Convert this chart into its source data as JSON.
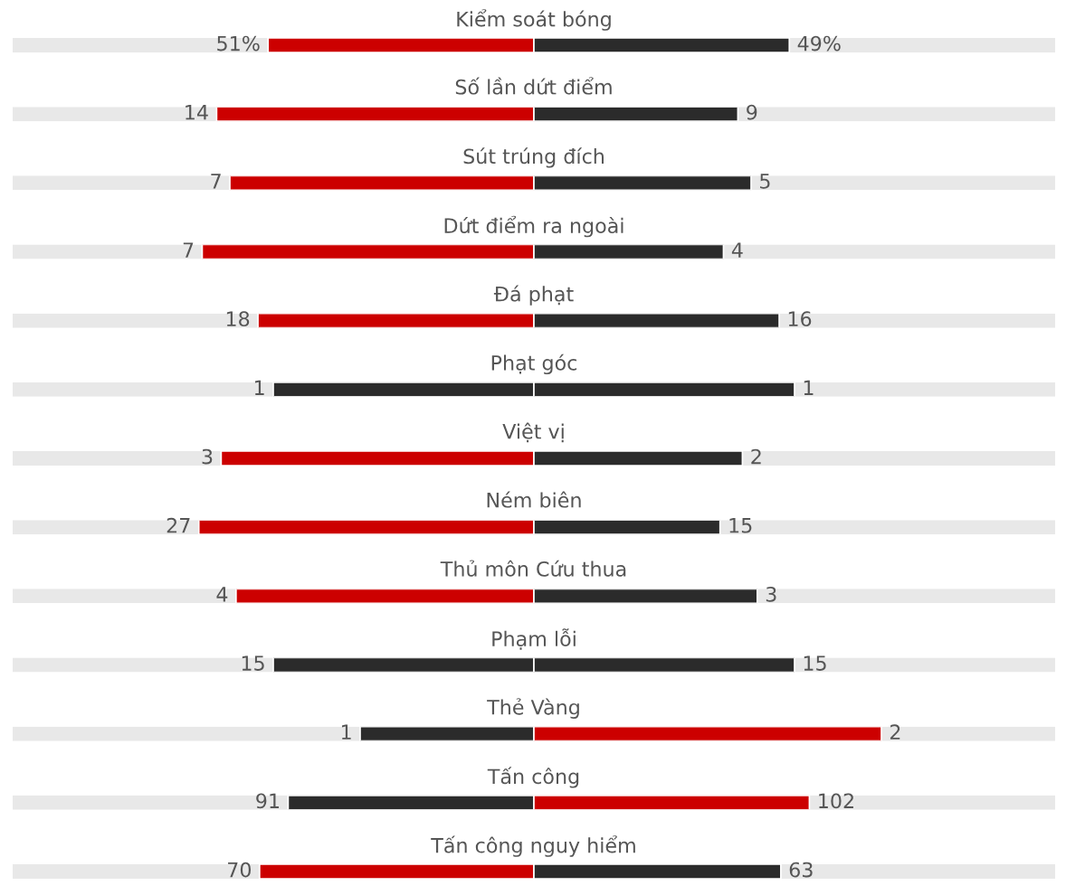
{
  "chart_data": [
    {
      "type": "bar",
      "orientation": "horizontal",
      "stacked": true,
      "tick_labels": "y",
      "categories": [
        "Kiểm soát bóng"
      ],
      "series": [
        {
          "values": [
            51
          ],
          "colors": [
            "#cc0000"
          ],
          "value_labels": [
            "51%"
          ]
        },
        {
          "values": [
            49
          ],
          "colors": [
            "#2b2b2b"
          ],
          "value_labels": [
            "49%"
          ]
        }
      ]
    },
    {
      "type": "bar",
      "orientation": "horizontal",
      "stacked": true,
      "tick_labels": "y",
      "categories": [
        "Số lần dứt điểm"
      ],
      "series": [
        {
          "values": [
            14
          ],
          "colors": [
            "#cc0000"
          ],
          "value_labels": [
            "14"
          ]
        },
        {
          "values": [
            9
          ],
          "colors": [
            "#2b2b2b"
          ],
          "value_labels": [
            "9"
          ]
        }
      ]
    },
    {
      "type": "bar",
      "orientation": "horizontal",
      "stacked": true,
      "tick_labels": "y",
      "categories": [
        "Sút trúng đích"
      ],
      "series": [
        {
          "values": [
            7
          ],
          "colors": [
            "#cc0000"
          ],
          "value_labels": [
            "7"
          ]
        },
        {
          "values": [
            5
          ],
          "colors": [
            "#2b2b2b"
          ],
          "value_labels": [
            "5"
          ]
        }
      ]
    },
    {
      "type": "bar",
      "orientation": "horizontal",
      "stacked": true,
      "tick_labels": "y",
      "categories": [
        "Dứt điểm ra ngoài"
      ],
      "series": [
        {
          "values": [
            7
          ],
          "colors": [
            "#cc0000"
          ],
          "value_labels": [
            "7"
          ]
        },
        {
          "values": [
            4
          ],
          "colors": [
            "#2b2b2b"
          ],
          "value_labels": [
            "4"
          ]
        }
      ]
    },
    {
      "type": "bar",
      "orientation": "horizontal",
      "stacked": true,
      "tick_labels": "y",
      "categories": [
        "Đá phạt"
      ],
      "series": [
        {
          "values": [
            18
          ],
          "colors": [
            "#cc0000"
          ],
          "value_labels": [
            "18"
          ]
        },
        {
          "values": [
            16
          ],
          "colors": [
            "#2b2b2b"
          ],
          "value_labels": [
            "16"
          ]
        }
      ]
    },
    {
      "type": "bar",
      "orientation": "horizontal",
      "stacked": true,
      "tick_labels": "y",
      "categories": [
        "Phạt góc"
      ],
      "series": [
        {
          "values": [
            1
          ],
          "colors": [
            "#2b2b2b"
          ],
          "value_labels": [
            "1"
          ]
        },
        {
          "values": [
            1
          ],
          "colors": [
            "#2b2b2b"
          ],
          "value_labels": [
            "1"
          ]
        }
      ]
    },
    {
      "type": "bar",
      "orientation": "horizontal",
      "stacked": true,
      "tick_labels": "y",
      "categories": [
        "Việt vị"
      ],
      "series": [
        {
          "values": [
            3
          ],
          "colors": [
            "#cc0000"
          ],
          "value_labels": [
            "3"
          ]
        },
        {
          "values": [
            2
          ],
          "colors": [
            "#2b2b2b"
          ],
          "value_labels": [
            "2"
          ]
        }
      ]
    },
    {
      "type": "bar",
      "orientation": "horizontal",
      "stacked": true,
      "tick_labels": "y",
      "categories": [
        "Ném biên"
      ],
      "series": [
        {
          "values": [
            27
          ],
          "colors": [
            "#cc0000"
          ],
          "value_labels": [
            "27"
          ]
        },
        {
          "values": [
            15
          ],
          "colors": [
            "#2b2b2b"
          ],
          "value_labels": [
            "15"
          ]
        }
      ]
    },
    {
      "type": "bar",
      "orientation": "horizontal",
      "stacked": true,
      "tick_labels": "y",
      "categories": [
        "Thủ môn Cứu thua"
      ],
      "series": [
        {
          "values": [
            4
          ],
          "colors": [
            "#cc0000"
          ],
          "value_labels": [
            "4"
          ]
        },
        {
          "values": [
            3
          ],
          "colors": [
            "#2b2b2b"
          ],
          "value_labels": [
            "3"
          ]
        }
      ]
    },
    {
      "type": "bar",
      "orientation": "horizontal",
      "stacked": true,
      "tick_labels": "y",
      "categories": [
        "Phạm lỗi"
      ],
      "series": [
        {
          "values": [
            15
          ],
          "colors": [
            "#2b2b2b"
          ],
          "value_labels": [
            "15"
          ]
        },
        {
          "values": [
            15
          ],
          "colors": [
            "#2b2b2b"
          ],
          "value_labels": [
            "15"
          ]
        }
      ]
    },
    {
      "type": "bar",
      "orientation": "horizontal",
      "stacked": true,
      "tick_labels": "y",
      "categories": [
        "Thẻ Vàng"
      ],
      "series": [
        {
          "values": [
            1
          ],
          "colors": [
            "#2b2b2b"
          ],
          "value_labels": [
            "1"
          ]
        },
        {
          "values": [
            2
          ],
          "colors": [
            "#cc0000"
          ],
          "value_labels": [
            "2"
          ]
        }
      ]
    },
    {
      "type": "bar",
      "orientation": "horizontal",
      "stacked": true,
      "tick_labels": "y",
      "categories": [
        "Tấn công"
      ],
      "series": [
        {
          "values": [
            91
          ],
          "colors": [
            "#2b2b2b"
          ],
          "value_labels": [
            "91"
          ]
        },
        {
          "values": [
            102
          ],
          "colors": [
            "#cc0000"
          ],
          "value_labels": [
            "102"
          ]
        }
      ]
    },
    {
      "type": "bar",
      "orientation": "horizontal",
      "stacked": true,
      "tick_labels": "y",
      "categories": [
        "Tấn công nguy hiểm"
      ],
      "series": [
        {
          "values": [
            70
          ],
          "colors": [
            "#cc0000"
          ],
          "value_labels": [
            "70"
          ]
        },
        {
          "values": [
            63
          ],
          "colors": [
            "#2b2b2b"
          ],
          "value_labels": [
            "63"
          ]
        }
      ]
    }
  ]
}
